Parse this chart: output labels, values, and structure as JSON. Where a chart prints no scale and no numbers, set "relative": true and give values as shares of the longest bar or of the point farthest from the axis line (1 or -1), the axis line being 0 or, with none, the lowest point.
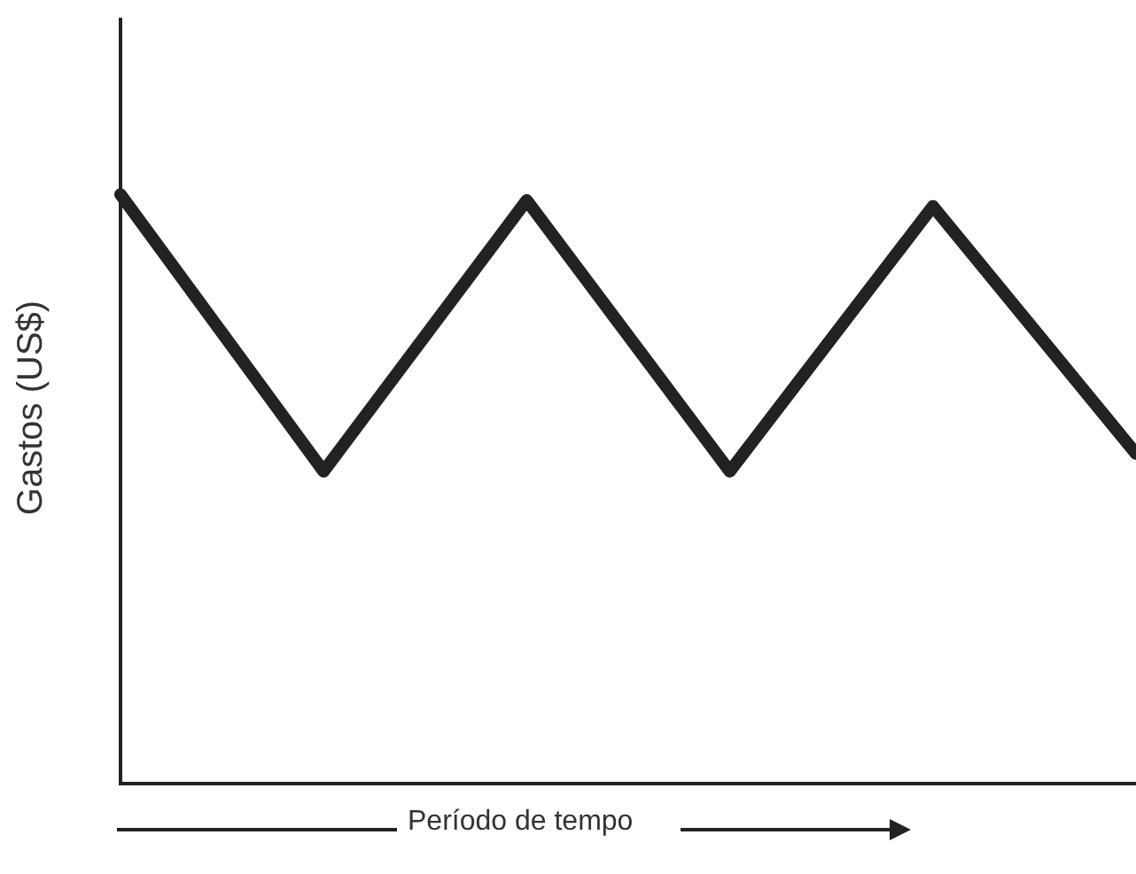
{
  "chart_data": {
    "type": "line",
    "xlabel": "Período de tempo",
    "ylabel": "Gastos (US$)",
    "relative": true,
    "tick_labels": false,
    "marker": "none",
    "grid": false,
    "legend": false,
    "categories": [
      null,
      null,
      null,
      null,
      null,
      null
    ],
    "series": [
      {
        "color": "#222222",
        "values": [
          1,
          0.53,
          0.99,
          0.53,
          0.98,
          0.56
        ]
      }
    ]
  }
}
